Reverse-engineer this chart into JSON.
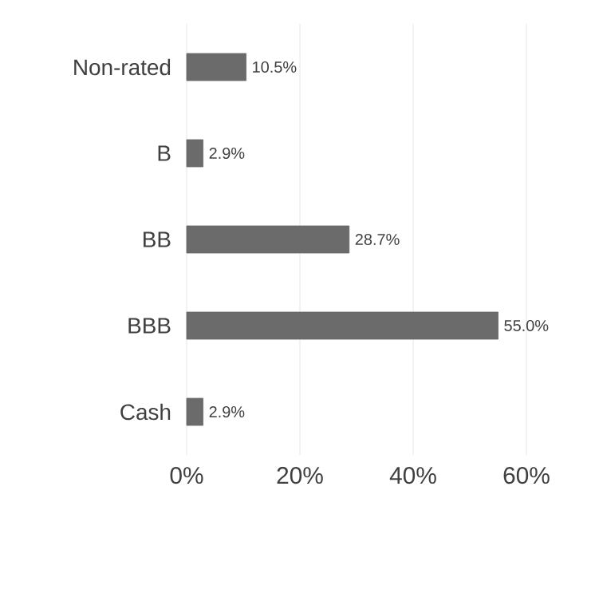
{
  "chart_data": {
    "type": "bar",
    "orientation": "horizontal",
    "categories": [
      "Non-rated",
      "B",
      "BB",
      "BBB",
      "Cash"
    ],
    "values": [
      10.5,
      2.9,
      28.7,
      55.0,
      2.9
    ],
    "value_labels": [
      "10.5%",
      "2.9%",
      "28.7%",
      "55.0%",
      "2.9%"
    ],
    "color": "#6b6b6b",
    "xlim": [
      0,
      60
    ],
    "xticks": [
      {
        "value": 0,
        "label": "0%"
      },
      {
        "value": 20,
        "label": "20%"
      },
      {
        "value": 40,
        "label": "40%"
      },
      {
        "value": 60,
        "label": "60%"
      }
    ],
    "grid": "x"
  }
}
